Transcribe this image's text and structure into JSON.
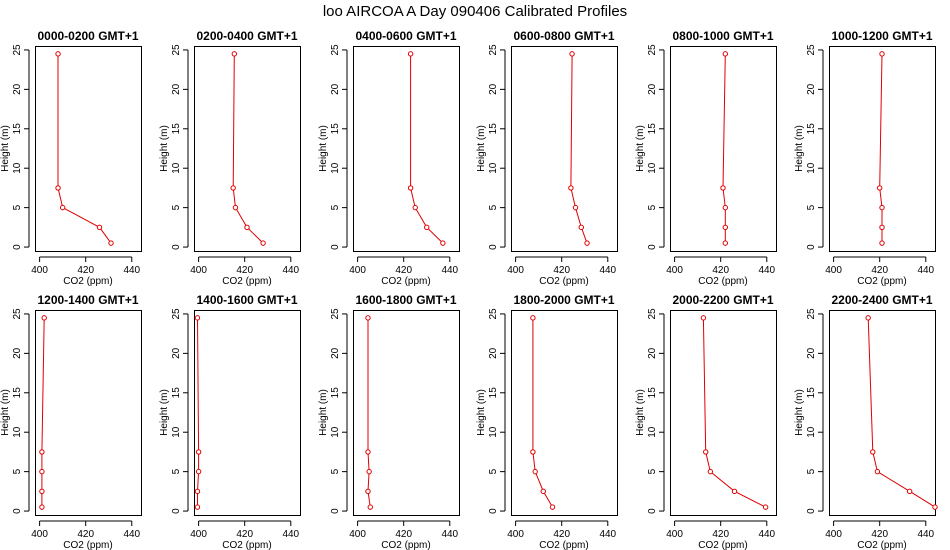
{
  "title": "loo AIRCOA A  Day 090406  Calibrated Profiles",
  "chart_data": [
    {
      "type": "line",
      "title": "0000-0200 GMT+1",
      "xlabel": "CO2 (ppm)",
      "ylabel": "Height (m)",
      "xlim": [
        398,
        444
      ],
      "ylim": [
        -0.5,
        25.5
      ],
      "xticks": [
        400,
        420,
        440
      ],
      "yticks": [
        0,
        5,
        10,
        15,
        20,
        25
      ],
      "series": [
        {
          "x": [
            431,
            426,
            410,
            408,
            408
          ],
          "y": [
            0.5,
            2.5,
            5,
            7.5,
            24.5
          ]
        }
      ]
    },
    {
      "type": "line",
      "title": "0200-0400 GMT+1",
      "xlabel": "CO2 (ppm)",
      "ylabel": "Height (m)",
      "xlim": [
        398,
        444
      ],
      "ylim": [
        -0.5,
        25.5
      ],
      "xticks": [
        400,
        420,
        440
      ],
      "yticks": [
        0,
        5,
        10,
        15,
        20,
        25
      ],
      "series": [
        {
          "x": [
            428,
            421,
            416,
            415,
            415.5
          ],
          "y": [
            0.5,
            2.5,
            5,
            7.5,
            24.5
          ]
        }
      ]
    },
    {
      "type": "line",
      "title": "0400-0600 GMT+1",
      "xlabel": "CO2 (ppm)",
      "ylabel": "Height (m)",
      "xlim": [
        398,
        444
      ],
      "ylim": [
        -0.5,
        25.5
      ],
      "xticks": [
        400,
        420,
        440
      ],
      "yticks": [
        0,
        5,
        10,
        15,
        20,
        25
      ],
      "series": [
        {
          "x": [
            437,
            430,
            425,
            423,
            423
          ],
          "y": [
            0.5,
            2.5,
            5,
            7.5,
            24.5
          ]
        }
      ]
    },
    {
      "type": "line",
      "title": "0600-0800 GMT+1",
      "xlabel": "CO2 (ppm)",
      "ylabel": "Height (m)",
      "xlim": [
        398,
        444
      ],
      "ylim": [
        -0.5,
        25.5
      ],
      "xticks": [
        400,
        420,
        440
      ],
      "yticks": [
        0,
        5,
        10,
        15,
        20,
        25
      ],
      "series": [
        {
          "x": [
            431,
            428.5,
            426,
            424,
            424.5
          ],
          "y": [
            0.5,
            2.5,
            5,
            7.5,
            24.5
          ]
        }
      ]
    },
    {
      "type": "line",
      "title": "0800-1000 GMT+1",
      "xlabel": "CO2 (ppm)",
      "ylabel": "Height (m)",
      "xlim": [
        398,
        444
      ],
      "ylim": [
        -0.5,
        25.5
      ],
      "xticks": [
        400,
        420,
        440
      ],
      "yticks": [
        0,
        5,
        10,
        15,
        20,
        25
      ],
      "series": [
        {
          "x": [
            422,
            422,
            422,
            421,
            422
          ],
          "y": [
            0.5,
            2.5,
            5,
            7.5,
            24.5
          ]
        }
      ]
    },
    {
      "type": "line",
      "title": "1000-1200 GMT+1",
      "xlabel": "CO2 (ppm)",
      "ylabel": "Height (m)",
      "xlim": [
        398,
        444
      ],
      "ylim": [
        -0.5,
        25.5
      ],
      "xticks": [
        400,
        420,
        440
      ],
      "yticks": [
        0,
        5,
        10,
        15,
        20,
        25
      ],
      "series": [
        {
          "x": [
            421,
            421,
            421,
            420,
            421
          ],
          "y": [
            0.5,
            2.5,
            5,
            7.5,
            24.5
          ]
        }
      ]
    },
    {
      "type": "line",
      "title": "1200-1400 GMT+1",
      "xlabel": "CO2 (ppm)",
      "ylabel": "Height (m)",
      "xlim": [
        398,
        444
      ],
      "ylim": [
        -0.5,
        25.5
      ],
      "xticks": [
        400,
        420,
        440
      ],
      "yticks": [
        0,
        5,
        10,
        15,
        20,
        25
      ],
      "series": [
        {
          "x": [
            401,
            401,
            401,
            401,
            402
          ],
          "y": [
            0.5,
            2.5,
            5,
            7.5,
            24.5
          ]
        }
      ]
    },
    {
      "type": "line",
      "title": "1400-1600 GMT+1",
      "xlabel": "CO2 (ppm)",
      "ylabel": "Height (m)",
      "xlim": [
        398,
        444
      ],
      "ylim": [
        -0.5,
        25.5
      ],
      "xticks": [
        400,
        420,
        440
      ],
      "yticks": [
        0,
        5,
        10,
        15,
        20,
        25
      ],
      "series": [
        {
          "x": [
            399.5,
            399.5,
            400,
            400,
            399.5
          ],
          "y": [
            0.5,
            2.5,
            5,
            7.5,
            24.5
          ]
        }
      ]
    },
    {
      "type": "line",
      "title": "1600-1800 GMT+1",
      "xlabel": "CO2 (ppm)",
      "ylabel": "Height (m)",
      "xlim": [
        398,
        444
      ],
      "ylim": [
        -0.5,
        25.5
      ],
      "xticks": [
        400,
        420,
        440
      ],
      "yticks": [
        0,
        5,
        10,
        15,
        20,
        25
      ],
      "series": [
        {
          "x": [
            405.5,
            404.5,
            405,
            404.5,
            404.5
          ],
          "y": [
            0.5,
            2.5,
            5,
            7.5,
            24.5
          ]
        }
      ]
    },
    {
      "type": "line",
      "title": "1800-2000 GMT+1",
      "xlabel": "CO2 (ppm)",
      "ylabel": "Height (m)",
      "xlim": [
        398,
        444
      ],
      "ylim": [
        -0.5,
        25.5
      ],
      "xticks": [
        400,
        420,
        440
      ],
      "yticks": [
        0,
        5,
        10,
        15,
        20,
        25
      ],
      "series": [
        {
          "x": [
            416,
            412,
            408.5,
            407.5,
            407.5
          ],
          "y": [
            0.5,
            2.5,
            5,
            7.5,
            24.5
          ]
        }
      ]
    },
    {
      "type": "line",
      "title": "2000-2200 GMT+1",
      "xlabel": "CO2 (ppm)",
      "ylabel": "Height (m)",
      "xlim": [
        398,
        444
      ],
      "ylim": [
        -0.5,
        25.5
      ],
      "xticks": [
        400,
        420,
        440
      ],
      "yticks": [
        0,
        5,
        10,
        15,
        20,
        25
      ],
      "series": [
        {
          "x": [
            439.5,
            426,
            415.5,
            413.5,
            412.5
          ],
          "y": [
            0.5,
            2.5,
            5,
            7.5,
            24.5
          ]
        }
      ]
    },
    {
      "type": "line",
      "title": "2200-2400 GMT+1",
      "xlabel": "CO2 (ppm)",
      "ylabel": "Height (m)",
      "xlim": [
        398,
        444
      ],
      "ylim": [
        -0.5,
        25.5
      ],
      "xticks": [
        400,
        420,
        440
      ],
      "yticks": [
        0,
        5,
        10,
        15,
        20,
        25
      ],
      "series": [
        {
          "x": [
            444,
            433,
            419,
            417,
            415
          ],
          "y": [
            0.5,
            2.5,
            5,
            7.5,
            24.5
          ]
        }
      ]
    }
  ],
  "colors": {
    "series": "#e00000",
    "axis": "#000000",
    "background": "#ffffff"
  }
}
